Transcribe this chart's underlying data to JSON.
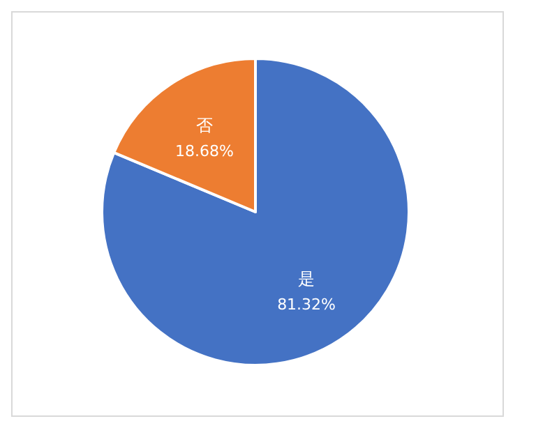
{
  "chart_data": {
    "type": "pie",
    "categories": [
      "是",
      "否"
    ],
    "values": [
      81.32,
      18.68
    ],
    "colors": [
      "#4472c4",
      "#ed7d31"
    ],
    "value_labels": [
      "81.32%",
      "18.68%"
    ]
  }
}
